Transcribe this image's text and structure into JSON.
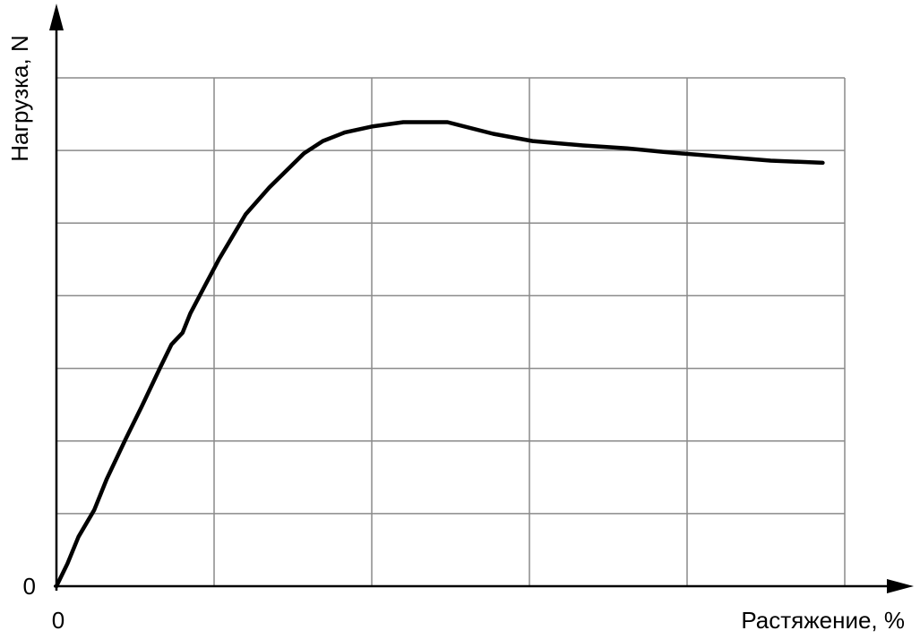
{
  "chart_data": {
    "type": "line",
    "y_label": "Нагрузка, N",
    "x_label": "Растяжение, %",
    "x": [
      0,
      0.07,
      0.14,
      0.24,
      0.32,
      0.44,
      0.54,
      0.66,
      0.73,
      0.8,
      0.85,
      0.94,
      1.03,
      1.2,
      1.35,
      1.57,
      1.69,
      1.83,
      2.0,
      2.2,
      2.48,
      2.77,
      3.02,
      3.34,
      3.62,
      3.85,
      4.19,
      4.53,
      4.86
    ],
    "values": [
      0,
      0.31,
      0.68,
      1.05,
      1.48,
      2.03,
      2.47,
      3.02,
      3.33,
      3.49,
      3.76,
      4.13,
      4.5,
      5.12,
      5.49,
      5.96,
      6.13,
      6.25,
      6.33,
      6.39,
      6.39,
      6.23,
      6.13,
      6.07,
      6.03,
      5.98,
      5.92,
      5.86,
      5.83
    ],
    "color": "#000000",
    "xlim": [
      0,
      5
    ],
    "ylim": [
      0,
      7
    ],
    "xticks": [
      0
    ],
    "yticks": [
      0
    ],
    "grid": true
  }
}
